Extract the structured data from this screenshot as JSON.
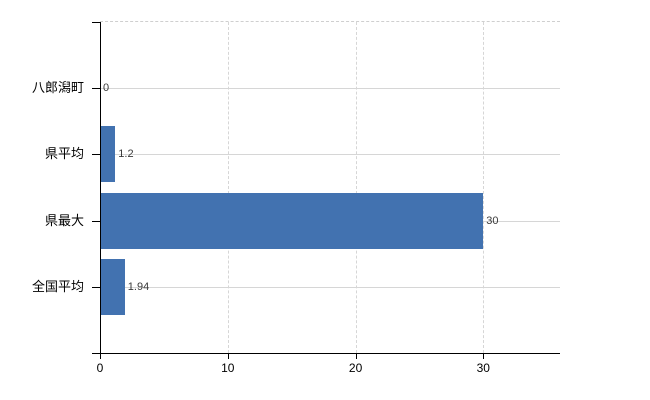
{
  "chart_data": {
    "type": "bar",
    "orientation": "horizontal",
    "title": "",
    "xlabel": "",
    "ylabel": "",
    "categories": [
      "八郎潟町",
      "県平均",
      "県最大",
      "全国平均"
    ],
    "values": [
      0,
      1.2,
      30,
      1.94
    ],
    "value_labels": [
      "0",
      "1.2",
      "30",
      "1.94"
    ],
    "x_ticks": [
      0,
      10,
      20,
      30
    ],
    "x_tick_labels": [
      "0",
      "10",
      "20",
      "30"
    ],
    "xlim": [
      0,
      36
    ],
    "grid": true,
    "legend": false,
    "colors": {
      "bar": "#4272B0",
      "gridline": "#D6D6D6",
      "top_border": "#CFCFCF",
      "axis": "#000000",
      "value_label": "#3A3A3A",
      "category_label": "#000000",
      "tick_label": "#000000",
      "background": "#FFFFFF"
    }
  }
}
